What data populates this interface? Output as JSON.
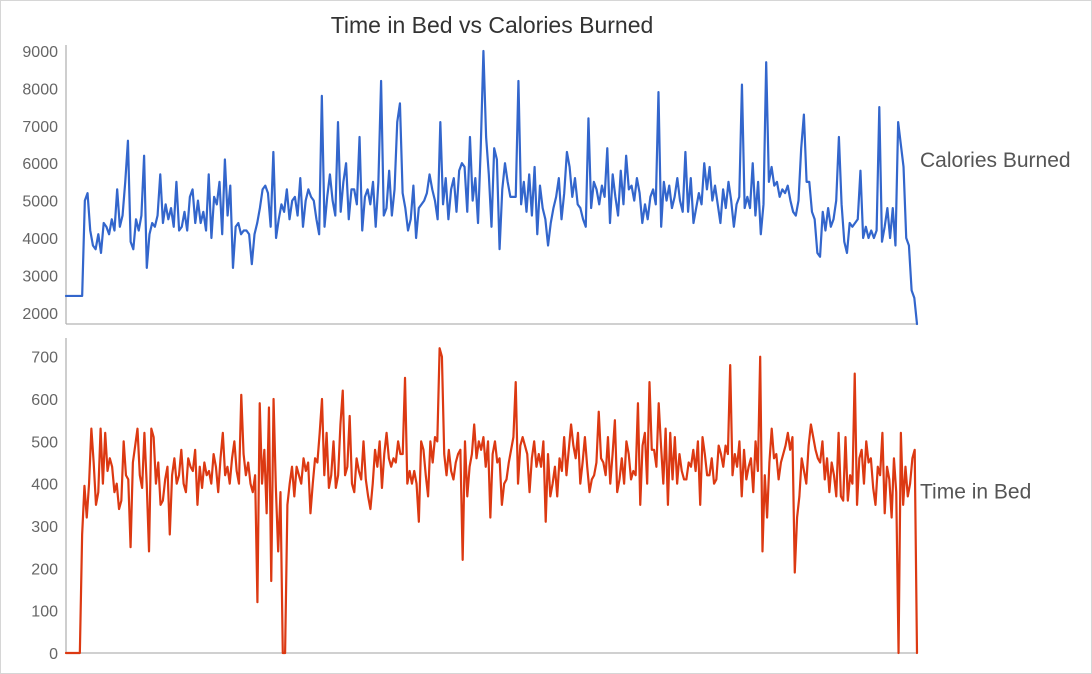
{
  "chart_data": {
    "type": "line",
    "title": "Time in Bed vs Calories Burned",
    "grid": false,
    "panels": [
      {
        "series_name": "Calories Burned",
        "color": "#3366cc",
        "ylim": [
          1700,
          9000
        ],
        "yticks": [
          2000,
          3000,
          4000,
          5000,
          6000,
          7000,
          8000,
          9000
        ],
        "values": [
          2450,
          2450,
          2450,
          2450,
          2450,
          2450,
          2450,
          5000,
          5200,
          4200,
          3800,
          3700,
          4100,
          3600,
          4400,
          4300,
          4100,
          4500,
          4200,
          5300,
          4300,
          4600,
          5500,
          6600,
          3900,
          3700,
          4500,
          4200,
          4600,
          6200,
          3200,
          4100,
          4400,
          4300,
          4600,
          5700,
          4400,
          4900,
          4500,
          4800,
          4300,
          5500,
          4200,
          4300,
          4700,
          4200,
          5100,
          5300,
          4400,
          5000,
          4400,
          4700,
          4200,
          5700,
          4000,
          5100,
          4900,
          5500,
          4100,
          6100,
          4600,
          5400,
          3200,
          4300,
          4400,
          4100,
          4200,
          4200,
          4100,
          3300,
          4100,
          4400,
          4800,
          5300,
          5400,
          5200,
          4300,
          6300,
          4000,
          4500,
          4900,
          4700,
          5300,
          4500,
          5000,
          5100,
          4600,
          5600,
          4300,
          5000,
          5300,
          5100,
          5000,
          4500,
          4100,
          7800,
          4300,
          5100,
          5700,
          5000,
          4600,
          7100,
          4700,
          5500,
          6000,
          4500,
          5300,
          5300,
          4900,
          6700,
          4200,
          5100,
          5300,
          4900,
          5500,
          4300,
          5500,
          8200,
          4600,
          4800,
          5800,
          4600,
          5300,
          7100,
          7600,
          5200,
          4800,
          4200,
          4500,
          5400,
          4000,
          4800,
          4900,
          5000,
          5200,
          5700,
          5300,
          5000,
          4500,
          7100,
          4900,
          5600,
          4500,
          5300,
          5600,
          4700,
          5800,
          6000,
          5900,
          4700,
          6700,
          5000,
          5600,
          4400,
          6400,
          9000,
          6700,
          5700,
          4300,
          6400,
          6100,
          3700,
          5300,
          6000,
          5500,
          5100,
          5100,
          5100,
          8200,
          4900,
          5500,
          4700,
          5700,
          4600,
          5900,
          4100,
          5400,
          4800,
          4500,
          3800,
          4400,
          4800,
          5100,
          5600,
          4500,
          5200,
          6300,
          5900,
          5100,
          5600,
          4900,
          4800,
          4500,
          4300,
          7200,
          4800,
          5500,
          5300,
          4900,
          5400,
          5100,
          6400,
          4400,
          5700,
          5100,
          4600,
          5800,
          4900,
          6200,
          5300,
          5400,
          5000,
          5600,
          5200,
          4400,
          4900,
          4500,
          5100,
          5300,
          4900,
          7900,
          4300,
          5500,
          5000,
          5400,
          4800,
          5100,
          5600,
          5000,
          4700,
          6300,
          4700,
          5600,
          4400,
          4800,
          5200,
          4900,
          6000,
          5300,
          5900,
          5000,
          5400,
          4900,
          4400,
          5300,
          4800,
          5500,
          5000,
          4300,
          4900,
          5100,
          8100,
          4800,
          5100,
          4800,
          6000,
          4600,
          5500,
          4100,
          4900,
          8700,
          5500,
          5900,
          5400,
          5500,
          5100,
          5300,
          5200,
          5400,
          5000,
          4700,
          4600,
          5000,
          6400,
          7300,
          5500,
          5500,
          4700,
          4500,
          3600,
          3500,
          4700,
          4200,
          4800,
          4300,
          4500,
          5000,
          6700,
          4900,
          3900,
          3600,
          4400,
          4300,
          4400,
          4500,
          5800,
          4000,
          4300,
          4000,
          4200,
          4000,
          4200,
          7500,
          3900,
          4300,
          4800,
          4000,
          4800,
          3800,
          7100,
          6500,
          5900,
          4000,
          3800,
          2600,
          2400,
          1700
        ]
      },
      {
        "series_name": "Time in Bed",
        "color": "#dc3912",
        "ylim": [
          0,
          730
        ],
        "yticks": [
          0,
          100,
          200,
          300,
          400,
          500,
          600,
          700
        ],
        "values": [
          0,
          0,
          0,
          0,
          0,
          0,
          0,
          280,
          395,
          320,
          400,
          530,
          450,
          350,
          380,
          530,
          400,
          520,
          430,
          460,
          440,
          380,
          400,
          340,
          360,
          500,
          420,
          410,
          250,
          450,
          490,
          530,
          420,
          390,
          520,
          400,
          240,
          530,
          510,
          400,
          450,
          350,
          360,
          410,
          440,
          280,
          420,
          460,
          400,
          420,
          480,
          400,
          380,
          460,
          440,
          430,
          480,
          350,
          440,
          390,
          450,
          420,
          430,
          400,
          470,
          440,
          380,
          460,
          520,
          420,
          440,
          400,
          460,
          500,
          430,
          400,
          610,
          470,
          420,
          450,
          400,
          380,
          420,
          120,
          590,
          400,
          480,
          330,
          580,
          170,
          600,
          390,
          240,
          380,
          0,
          0,
          350,
          400,
          440,
          370,
          440,
          420,
          400,
          460,
          430,
          450,
          330,
          400,
          460,
          450,
          520,
          600,
          420,
          520,
          390,
          420,
          500,
          390,
          420,
          540,
          620,
          420,
          440,
          560,
          400,
          380,
          460,
          430,
          410,
          500,
          410,
          370,
          340,
          400,
          480,
          440,
          500,
          390,
          470,
          520,
          460,
          440,
          460,
          450,
          500,
          470,
          470,
          650,
          400,
          430,
          400,
          430,
          400,
          310,
          500,
          480,
          420,
          370,
          500,
          450,
          510,
          500,
          720,
          700,
          470,
          420,
          480,
          430,
          410,
          450,
          470,
          480,
          220,
          500,
          370,
          440,
          470,
          540,
          460,
          500,
          480,
          510,
          440,
          500,
          320,
          470,
          500,
          450,
          460,
          350,
          400,
          410,
          450,
          480,
          510,
          640,
          400,
          490,
          510,
          490,
          470,
          380,
          460,
          500,
          440,
          470,
          440,
          500,
          310,
          470,
          370,
          400,
          440,
          370,
          460,
          430,
          510,
          420,
          480,
          540,
          490,
          460,
          520,
          400,
          450,
          510,
          440,
          380,
          410,
          420,
          450,
          570,
          460,
          450,
          420,
          510,
          400,
          470,
          550,
          380,
          410,
          460,
          400,
          500,
          470,
          410,
          430,
          420,
          590,
          350,
          490,
          520,
          400,
          640,
          480,
          480,
          440,
          590,
          490,
          400,
          530,
          350,
          520,
          410,
          510,
          400,
          470,
          430,
          410,
          410,
          450,
          440,
          480,
          430,
          500,
          350,
          510,
          470,
          420,
          420,
          460,
          400,
          410,
          490,
          470,
          440,
          490,
          470,
          680,
          420,
          470,
          440,
          500,
          370,
          480,
          410,
          440,
          460,
          380,
          500,
          430,
          700,
          240,
          420,
          320,
          450,
          530,
          460,
          470,
          410,
          450,
          470,
          490,
          520,
          480,
          510,
          190,
          320,
          370,
          460,
          430,
          400,
          490,
          540,
          510,
          480,
          460,
          450,
          500,
          410,
          460,
          380,
          450,
          420,
          370,
          520,
          370,
          360,
          510,
          360,
          420,
          400,
          660,
          350,
          460,
          480,
          400,
          500,
          450,
          460,
          390,
          350,
          440,
          420,
          520,
          330,
          440,
          410,
          320,
          460,
          380,
          0,
          520,
          350,
          440,
          370,
          400,
          460,
          480,
          0
        ]
      }
    ]
  }
}
